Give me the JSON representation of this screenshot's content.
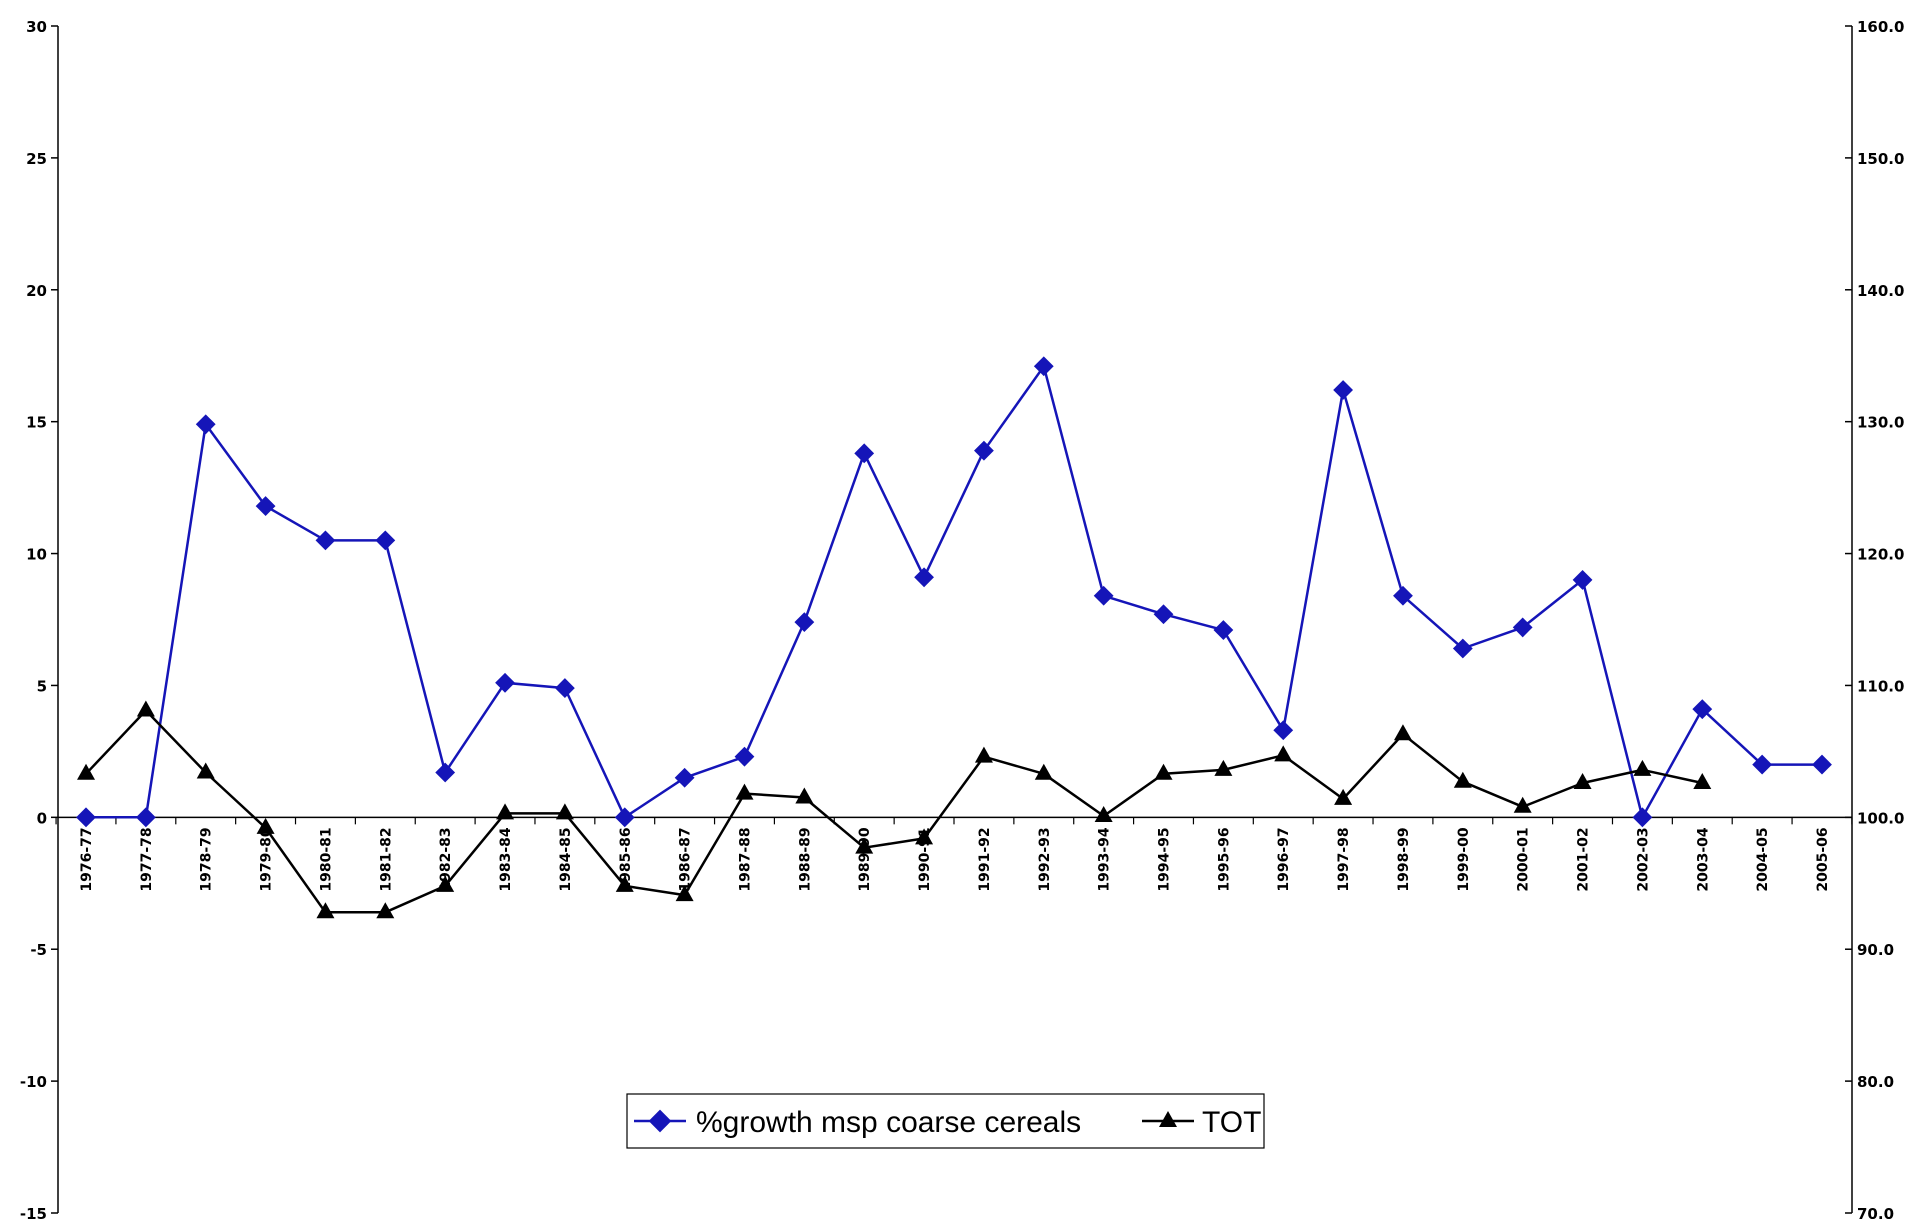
{
  "chart_data": {
    "type": "line",
    "categories": [
      "1976-77",
      "1977-78",
      "1978-79",
      "1979-80",
      "1980-81",
      "1981-82",
      "1982-83",
      "1983-84",
      "1984-85",
      "1985-86",
      "1986-87",
      "1987-88",
      "1988-89",
      "1989-90",
      "1990-91",
      "1991-92",
      "1992-93",
      "1993-94",
      "1994-95",
      "1995-96",
      "1996-97",
      "1997-98",
      "1998-99",
      "1999-00",
      "2000-01",
      "2001-02",
      "2002-03",
      "2003-04",
      "2004-05",
      "2005-06"
    ],
    "y_left": {
      "min": -15,
      "max": 30,
      "step": 5,
      "ticks": [
        "-15",
        "-10",
        "-5",
        "0",
        "5",
        "10",
        "15",
        "20",
        "25",
        "30"
      ]
    },
    "y_right": {
      "min": 70,
      "max": 160,
      "step": 10,
      "ticks": [
        "70.0",
        "80.0",
        "90.0",
        "100.0",
        "110.0",
        "120.0",
        "130.0",
        "140.0",
        "150.0",
        "160.0"
      ]
    },
    "series": [
      {
        "name": "%growth msp coarse cereals",
        "axis": "left",
        "color": "#1515b8",
        "marker": "diamond",
        "values": [
          0,
          0,
          14.9,
          11.8,
          10.5,
          10.5,
          1.7,
          5.1,
          4.9,
          0,
          1.5,
          2.3,
          7.4,
          13.8,
          9.1,
          13.9,
          17.1,
          8.4,
          7.7,
          7.1,
          3.3,
          16.2,
          8.4,
          6.4,
          7.2,
          9.0,
          0,
          4.1,
          2.0,
          2.0
        ]
      },
      {
        "name": "TOT",
        "axis": "right",
        "color": "#000000",
        "marker": "triangle",
        "values": [
          103.3,
          108.1,
          103.4,
          99.2,
          92.8,
          92.8,
          94.8,
          100.3,
          100.3,
          94.8,
          94.1,
          101.8,
          101.5,
          97.7,
          98.4,
          104.6,
          103.3,
          100.1,
          103.3,
          103.6,
          104.7,
          101.4,
          106.3,
          102.7,
          100.8,
          102.6,
          103.6,
          102.6,
          null,
          null
        ]
      }
    ],
    "legend": {
      "entries": [
        "%growth msp coarse cereals",
        "TOT"
      ],
      "placement": "bottom-center"
    },
    "grid": false
  }
}
